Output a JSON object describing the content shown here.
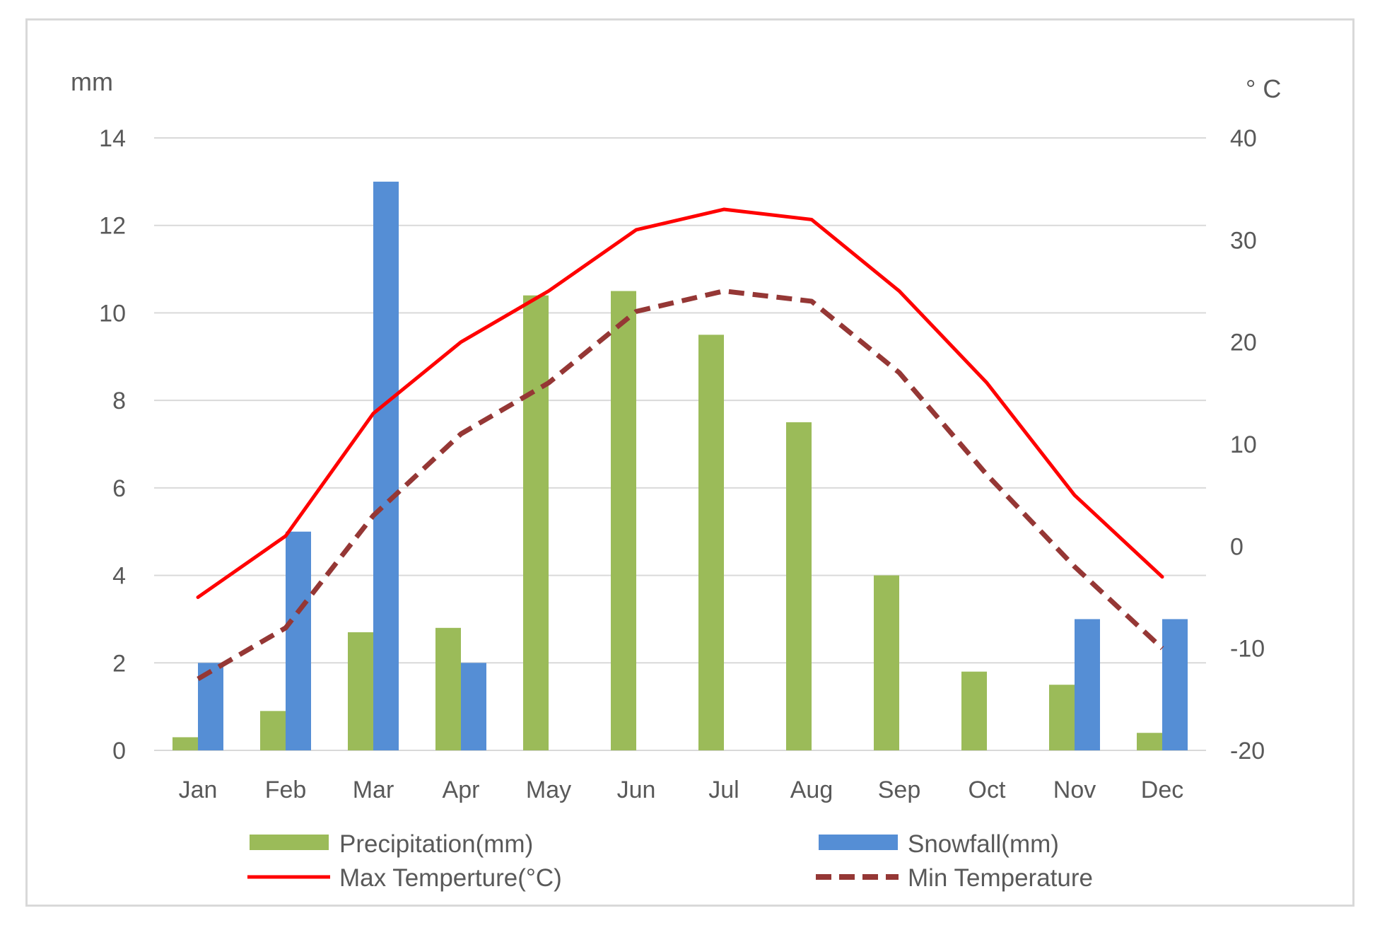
{
  "chart_data": {
    "type": "bar+line",
    "categories": [
      "Jan",
      "Feb",
      "Mar",
      "Apr",
      "May",
      "Jun",
      "Jul",
      "Aug",
      "Sep",
      "Oct",
      "Nov",
      "Dec"
    ],
    "left_axis": {
      "label": "mm",
      "range": [
        0,
        14
      ],
      "ticks": [
        0,
        2,
        4,
        6,
        8,
        10,
        12,
        14
      ]
    },
    "right_axis": {
      "label": "° C",
      "range": [
        -20,
        40
      ],
      "ticks": [
        -20,
        -10,
        0,
        10,
        20,
        30,
        40
      ]
    },
    "grid": true,
    "legend_position": "bottom",
    "series": [
      {
        "name": "Precipitation(mm)",
        "type": "bar",
        "axis": "left",
        "color": "#9bbb59",
        "values": [
          0.3,
          0.9,
          2.7,
          2.8,
          10.4,
          10.5,
          9.5,
          7.5,
          4.0,
          1.8,
          1.5,
          0.4
        ]
      },
      {
        "name": "Snowfall(mm)",
        "type": "bar",
        "axis": "left",
        "color": "#558ed5",
        "values": [
          2,
          5,
          13,
          2,
          0,
          0,
          0,
          0,
          0,
          0,
          3,
          3
        ]
      },
      {
        "name": "Max Temperture(°C)",
        "type": "line",
        "axis": "right",
        "color": "#ff0000",
        "dash": false,
        "values": [
          -5,
          1,
          13,
          20,
          25,
          31,
          33,
          32,
          25,
          16,
          5,
          -3
        ]
      },
      {
        "name": "Min Temperature",
        "type": "line",
        "axis": "right",
        "color": "#953735",
        "dash": true,
        "values": [
          -13,
          -8,
          3,
          11,
          16,
          23,
          25,
          24,
          17,
          7,
          -2,
          -10
        ]
      }
    ]
  }
}
